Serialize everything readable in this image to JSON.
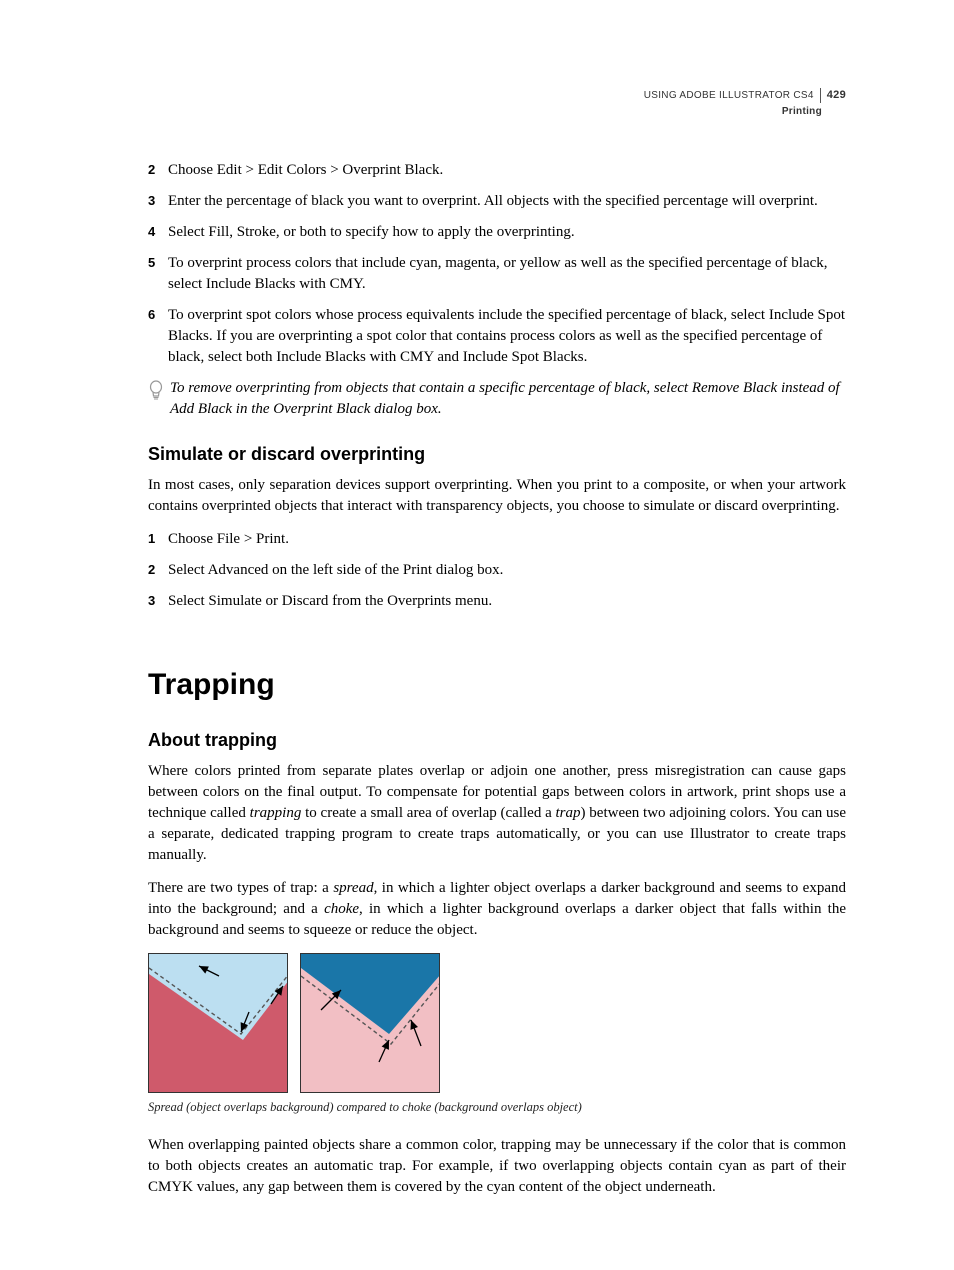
{
  "header": {
    "book": "USING ADOBE ILLUSTRATOR CS4",
    "page": "429",
    "section": "Printing"
  },
  "list1": [
    {
      "n": "2",
      "t": "Choose Edit > Edit Colors > Overprint Black."
    },
    {
      "n": "3",
      "t": "Enter the percentage of black you want to overprint. All objects with the specified percentage will overprint."
    },
    {
      "n": "4",
      "t": "Select Fill, Stroke, or both to specify how to apply the overprinting."
    },
    {
      "n": "5",
      "t": "To overprint process colors that include cyan, magenta, or yellow as well as the specified percentage of black, select Include Blacks with CMY."
    },
    {
      "n": "6",
      "t": "To overprint spot colors whose process equivalents include the specified percentage of black, select Include Spot Blacks. If you are overprinting a spot color that contains process colors as well as the specified percentage of black, select both Include Blacks with CMY and Include Spot Blacks."
    }
  ],
  "tip": "To remove overprinting from objects that contain a specific percentage of black, select Remove Black instead of Add Black in the Overprint Black dialog box.",
  "h2a": "Simulate or discard overprinting",
  "p1": "In most cases, only separation devices support overprinting. When you print to a composite, or when your artwork contains overprinted objects that interact with transparency objects, you choose to simulate or discard overprinting.",
  "list2": [
    {
      "n": "1",
      "t": "Choose File > Print."
    },
    {
      "n": "2",
      "t": "Select Advanced on the left side of the Print dialog box."
    },
    {
      "n": "3",
      "t": "Select Simulate or Discard from the Overprints menu."
    }
  ],
  "h1": "Trapping",
  "h2b": "About trapping",
  "p2_parts": {
    "a": "Where colors printed from separate plates overlap or adjoin one another, press misregistration can cause gaps between colors on the final output. To compensate for potential gaps between colors in artwork, print shops use a technique called ",
    "i1": "trapping",
    "b": " to create a small area of overlap (called a ",
    "i2": "trap",
    "c": ") between two adjoining colors. You can use a separate, dedicated trapping program to create traps automatically, or you can use Illustrator to create traps manually."
  },
  "p3_parts": {
    "a": "There are two types of trap: a ",
    "i1": "spread",
    "b": ", in which a lighter object overlaps a darker background and seems to expand into the background; and a ",
    "i2": "choke",
    "c": ", in which a lighter background overlaps a darker object that falls within the background and seems to squeeze or reduce the object."
  },
  "figcaption": "Spread (object overlaps background) compared to choke (background overlaps object)",
  "p4": "When overlapping painted objects share a common color, trapping may be unnecessary if the color that is common to both objects creates an automatic trap. For example, if two overlapping objects contain cyan as part of their CMYK values, any gap between them is covered by the cyan content of the object underneath.",
  "colors": {
    "spread_bg": "#cf5a6b",
    "spread_fg": "#bcdff1",
    "choke_bg": "#f2bfc4",
    "choke_fg": "#1a76a8",
    "dash": "#555555",
    "arrow": "#000000"
  }
}
